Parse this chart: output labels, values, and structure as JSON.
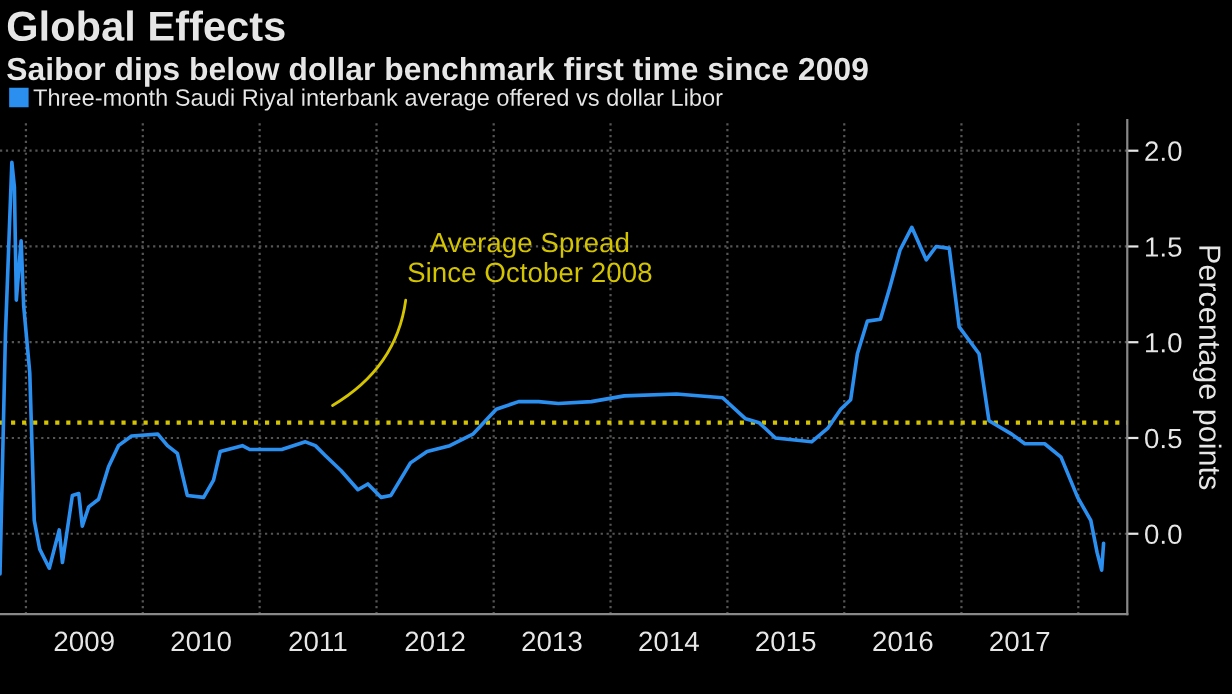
{
  "chart_data": {
    "type": "line",
    "title": "Global Effects",
    "subtitle": "Saibor dips below dollar benchmark first time since 2009",
    "x": [
      "2008-10-12",
      "2008-10-29",
      "2008-11-18",
      "2008-11-26",
      "2008-12-02",
      "2008-12-17",
      "2008-12-25",
      "2009-01-13",
      "2009-01-27",
      "2009-02-13",
      "2009-03-15",
      "2009-04-15",
      "2009-04-25",
      "2009-05-26",
      "2009-06-15",
      "2009-06-26",
      "2009-07-16",
      "2009-08-16",
      "2009-09-16",
      "2009-10-17",
      "2009-11-27",
      "2010-02-17",
      "2010-03-19",
      "2010-04-19",
      "2010-05-20",
      "2010-07-10",
      "2010-08-10",
      "2010-08-31",
      "2010-11-08",
      "2010-12-01",
      "2011-03-11",
      "2011-05-24",
      "2011-06-24",
      "2011-07-24",
      "2011-09-12",
      "2011-11-04",
      "2011-12-05",
      "2012-01-15",
      "2012-02-15",
      "2012-04-16",
      "2012-06-07",
      "2012-08-17",
      "2012-10-28",
      "2013-01-09",
      "2013-03-20",
      "2013-05-21",
      "2013-07-22",
      "2013-11-02",
      "2014-02-13",
      "2014-07-26",
      "2014-12-17",
      "2015-02-27",
      "2015-04-10",
      "2015-05-31",
      "2015-09-21",
      "2015-11-10",
      "2015-12-21",
      "2016-01-21",
      "2016-02-11",
      "2016-03-13",
      "2016-04-23",
      "2016-05-23",
      "2016-06-23",
      "2016-07-30",
      "2016-09-13",
      "2016-10-14",
      "2016-11-24",
      "2016-12-25",
      "2017-02-25",
      "2017-03-28",
      "2017-06-07",
      "2017-07-18",
      "2017-09-18",
      "2017-11-08",
      "2017-12-30",
      "2018-02-09",
      "2018-03-01",
      "2018-03-15",
      "2018-03-21"
    ],
    "series": [
      {
        "name": "Three-month Saudi Riyal interbank average offered vs dollar Libor",
        "color": "#2b8ff0",
        "values": [
          -0.21,
          1.04,
          1.94,
          1.81,
          1.22,
          1.53,
          1.19,
          0.84,
          0.07,
          -0.08,
          -0.18,
          0.02,
          -0.15,
          0.2,
          0.21,
          0.04,
          0.14,
          0.18,
          0.35,
          0.46,
          0.51,
          0.52,
          0.46,
          0.42,
          0.2,
          0.19,
          0.28,
          0.43,
          0.46,
          0.44,
          0.44,
          0.48,
          0.46,
          0.41,
          0.33,
          0.23,
          0.26,
          0.19,
          0.2,
          0.37,
          0.43,
          0.46,
          0.52,
          0.65,
          0.69,
          0.69,
          0.68,
          0.69,
          0.72,
          0.73,
          0.71,
          0.6,
          0.58,
          0.5,
          0.48,
          0.55,
          0.65,
          0.7,
          0.94,
          1.11,
          1.12,
          1.29,
          1.48,
          1.6,
          1.43,
          1.5,
          1.49,
          1.08,
          0.94,
          0.59,
          0.52,
          0.47,
          0.47,
          0.4,
          0.19,
          0.07,
          -0.1,
          -0.19,
          -0.05
        ]
      }
    ],
    "ylabel": "Percentage points",
    "xlim": [
      "2008-10-12",
      "2018-06-03"
    ],
    "xticks": [
      {
        "value": "2009-01-01",
        "label": null
      },
      {
        "value": "2009-07-02",
        "label": "2009"
      },
      {
        "value": "2010-01-01",
        "label": null
      },
      {
        "value": "2010-07-02",
        "label": "2010"
      },
      {
        "value": "2011-01-01",
        "label": null
      },
      {
        "value": "2011-07-02",
        "label": "2011"
      },
      {
        "value": "2012-01-01",
        "label": null
      },
      {
        "value": "2012-07-02",
        "label": "2012"
      },
      {
        "value": "2013-01-01",
        "label": null
      },
      {
        "value": "2013-07-02",
        "label": "2013"
      },
      {
        "value": "2014-01-01",
        "label": null
      },
      {
        "value": "2014-07-02",
        "label": "2014"
      },
      {
        "value": "2015-01-01",
        "label": null
      },
      {
        "value": "2015-07-02",
        "label": "2015"
      },
      {
        "value": "2016-01-01",
        "label": null
      },
      {
        "value": "2016-07-02",
        "label": "2016"
      },
      {
        "value": "2017-01-01",
        "label": null
      },
      {
        "value": "2017-07-02",
        "label": "2017"
      },
      {
        "value": "2018-01-01",
        "label": null
      }
    ],
    "ylim": [
      -0.42,
      2.16
    ],
    "yticks": [
      {
        "value": 0,
        "label": "0.0"
      },
      {
        "value": 0.5,
        "label": "0.5"
      },
      {
        "value": 1,
        "label": "1.0"
      },
      {
        "value": 1.5,
        "label": "1.5"
      },
      {
        "value": 2,
        "label": "2.0"
      }
    ],
    "ref_lines": [
      {
        "axis": "y",
        "value": 0.58,
        "label": "Average Spread\nSince October 2008",
        "color": "#d4c400",
        "line_style": "dotted"
      }
    ],
    "grid": true,
    "legend": "top left"
  }
}
